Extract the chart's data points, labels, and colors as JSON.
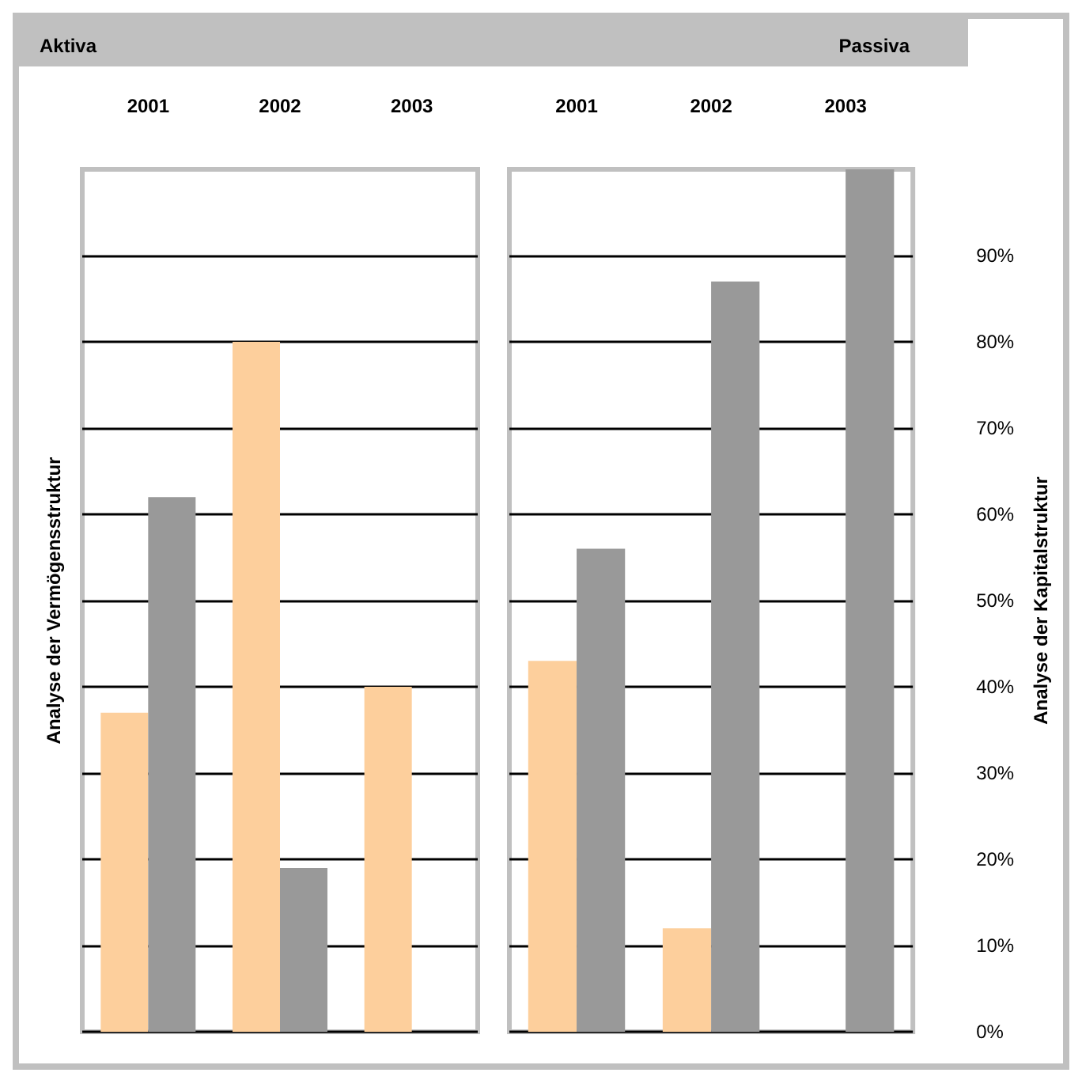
{
  "chart_data": [
    {
      "type": "bar",
      "title": "Aktiva",
      "ylabel": "Analyse der Vermögensstruktur",
      "categories": [
        "2001",
        "2002",
        "2003"
      ],
      "series": [
        {
          "color": "#fdcf9c",
          "values": [
            37,
            80,
            40
          ]
        },
        {
          "color": "#999999",
          "values": [
            62,
            19,
            0
          ]
        }
      ],
      "ylim": [
        0,
        100
      ],
      "yticks": [
        {
          "value": 0,
          "label": null
        },
        {
          "value": 10,
          "label": null
        },
        {
          "value": 20,
          "label": null
        },
        {
          "value": 30,
          "label": null
        },
        {
          "value": 40,
          "label": null
        },
        {
          "value": 50,
          "label": null
        },
        {
          "value": 60,
          "label": null
        },
        {
          "value": 70,
          "label": null
        },
        {
          "value": 80,
          "label": null
        },
        {
          "value": 90,
          "label": null
        }
      ],
      "grid": "y",
      "tick_labels": "x"
    },
    {
      "type": "bar",
      "title": "Passiva",
      "ylabel": "Analyse der Kapitalstruktur",
      "categories": [
        "2001",
        "2002",
        "2003"
      ],
      "series": [
        {
          "color": "#fdcf9c",
          "values": [
            43,
            12,
            0
          ]
        },
        {
          "color": "#999999",
          "values": [
            56,
            87,
            100
          ]
        }
      ],
      "ylim": [
        0,
        100
      ],
      "yticks": [
        {
          "value": 0,
          "label": "0%"
        },
        {
          "value": 10,
          "label": "10%"
        },
        {
          "value": 20,
          "label": "20%"
        },
        {
          "value": 30,
          "label": "30%"
        },
        {
          "value": 40,
          "label": "40%"
        },
        {
          "value": 50,
          "label": "50%"
        },
        {
          "value": 60,
          "label": "60%"
        },
        {
          "value": 70,
          "label": "70%"
        },
        {
          "value": 80,
          "label": "80%"
        },
        {
          "value": 90,
          "label": "90%"
        }
      ],
      "grid": "y"
    }
  ]
}
